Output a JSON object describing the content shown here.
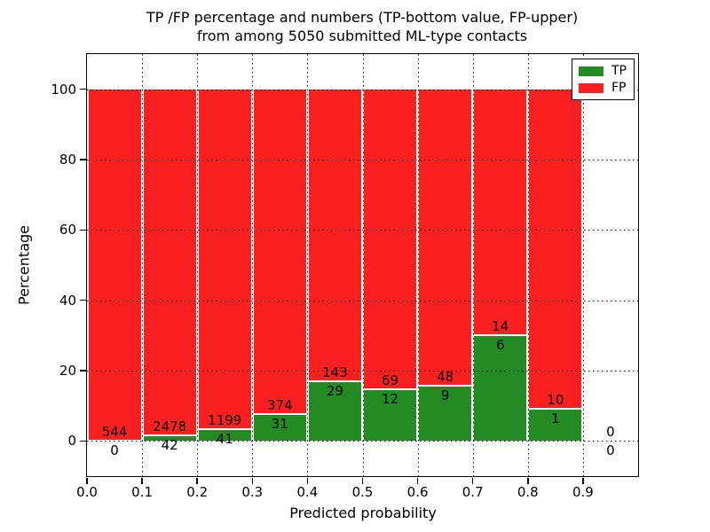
{
  "figure": {
    "title_line1": "TP /FP percentage and numbers (TP-bottom value, FP-upper)",
    "title_line2": "from among 5050 submitted ML-type contacts"
  },
  "chart_data": {
    "type": "bar",
    "stacked": true,
    "normalized_to_percent": true,
    "title": "TP /FP percentage and numbers (TP-bottom value, FP-upper) from among 5050 submitted ML-type contacts",
    "xlabel": "Predicted probability",
    "ylabel": "Percentage",
    "bins": [
      "0.0-0.1",
      "0.1-0.2",
      "0.2-0.3",
      "0.3-0.4",
      "0.4-0.5",
      "0.5-0.6",
      "0.6-0.7",
      "0.7-0.8",
      "0.8-0.9",
      "0.9-1.0"
    ],
    "bin_start": [
      0.0,
      0.1,
      0.2,
      0.3,
      0.4,
      0.5,
      0.6,
      0.7,
      0.8,
      0.9
    ],
    "bin_width": 0.1,
    "series": [
      {
        "name": "TP",
        "color": "#228b22",
        "counts": [
          0,
          42,
          41,
          31,
          29,
          12,
          9,
          6,
          1,
          0
        ]
      },
      {
        "name": "FP",
        "color": "#fa2020",
        "counts": [
          544,
          2478,
          1199,
          374,
          143,
          69,
          48,
          14,
          10,
          0
        ]
      }
    ],
    "tp_percent_of_bin": [
      0,
      1.67,
      3.31,
      7.65,
      16.86,
      14.81,
      15.79,
      30.0,
      9.09,
      null
    ],
    "fp_percent_of_bin": [
      100,
      98.33,
      96.69,
      92.35,
      83.14,
      85.19,
      84.21,
      70.0,
      90.91,
      null
    ],
    "xticks": [
      "0.0",
      "0.1",
      "0.2",
      "0.3",
      "0.4",
      "0.5",
      "0.6",
      "0.7",
      "0.8",
      "0.9"
    ],
    "yticks": [
      "0",
      "20",
      "40",
      "60",
      "80",
      "100"
    ],
    "xlim": [
      0.0,
      1.0
    ],
    "ylim": [
      -10,
      110
    ],
    "grid": "dotted, drawn over bars",
    "bar_edge_color": "#ffffff",
    "legend": {
      "position": "upper right",
      "entries": [
        "TP",
        "FP"
      ]
    }
  }
}
